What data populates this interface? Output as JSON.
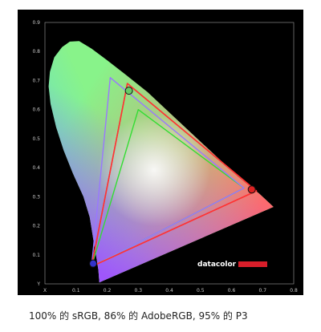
{
  "chart_data": {
    "type": "scatter",
    "title": "",
    "xlabel": "x",
    "ylabel": "y",
    "xlim": [
      0,
      0.8
    ],
    "ylim": [
      0,
      0.9
    ],
    "x_ticks": [
      "X",
      "0.1",
      "0.2",
      "0.3",
      "0.4",
      "0.5",
      "0.6",
      "0.7",
      "0.8"
    ],
    "y_ticks": [
      "Y",
      "0.1",
      "0.2",
      "0.3",
      "0.4",
      "0.5",
      "0.6",
      "0.7",
      "0.8",
      "0.9"
    ],
    "grid": false,
    "gamut_locus": [
      [
        0.175,
        0.005
      ],
      [
        0.172,
        0.048
      ],
      [
        0.166,
        0.088
      ],
      [
        0.155,
        0.156
      ],
      [
        0.144,
        0.23
      ],
      [
        0.124,
        0.3
      ],
      [
        0.09,
        0.38
      ],
      [
        0.06,
        0.46
      ],
      [
        0.036,
        0.54
      ],
      [
        0.018,
        0.62
      ],
      [
        0.012,
        0.68
      ],
      [
        0.016,
        0.73
      ],
      [
        0.03,
        0.78
      ],
      [
        0.055,
        0.815
      ],
      [
        0.08,
        0.834
      ],
      [
        0.11,
        0.836
      ],
      [
        0.15,
        0.81
      ],
      [
        0.2,
        0.77
      ],
      [
        0.26,
        0.72
      ],
      [
        0.33,
        0.66
      ],
      [
        0.42,
        0.57
      ],
      [
        0.52,
        0.47
      ],
      [
        0.62,
        0.37
      ],
      [
        0.69,
        0.31
      ],
      [
        0.735,
        0.265
      ]
    ],
    "series": [
      {
        "points": [
          [
            0.68,
            0.32
          ],
          [
            0.265,
            0.69
          ],
          [
            0.15,
            0.06
          ]
        ],
        "color": "#ff2222"
      },
      {
        "points": [
          [
            0.64,
            0.33
          ],
          [
            0.3,
            0.6
          ],
          [
            0.15,
            0.06
          ]
        ],
        "color": "#33dd33"
      },
      {
        "points": [
          [
            0.64,
            0.33
          ],
          [
            0.21,
            0.71
          ],
          [
            0.15,
            0.06
          ]
        ],
        "color": "#9977ff"
      },
      {
        "points": [
          [
            0.68,
            0.32
          ],
          [
            0.265,
            0.69
          ],
          [
            0.15,
            0.06
          ]
        ],
        "color": "#ff3333"
      }
    ],
    "measured_primaries": [
      {
        "x": 0.27,
        "y": 0.665,
        "color": "#66cc66"
      },
      {
        "x": 0.665,
        "y": 0.325,
        "color": "#dd2222"
      },
      {
        "x": 0.155,
        "y": 0.07,
        "color": "#3333cc"
      }
    ],
    "brand": "datacolor"
  },
  "caption": "100% 的 sRGB, 86% 的 AdobeRGB, 95% 的 P3"
}
